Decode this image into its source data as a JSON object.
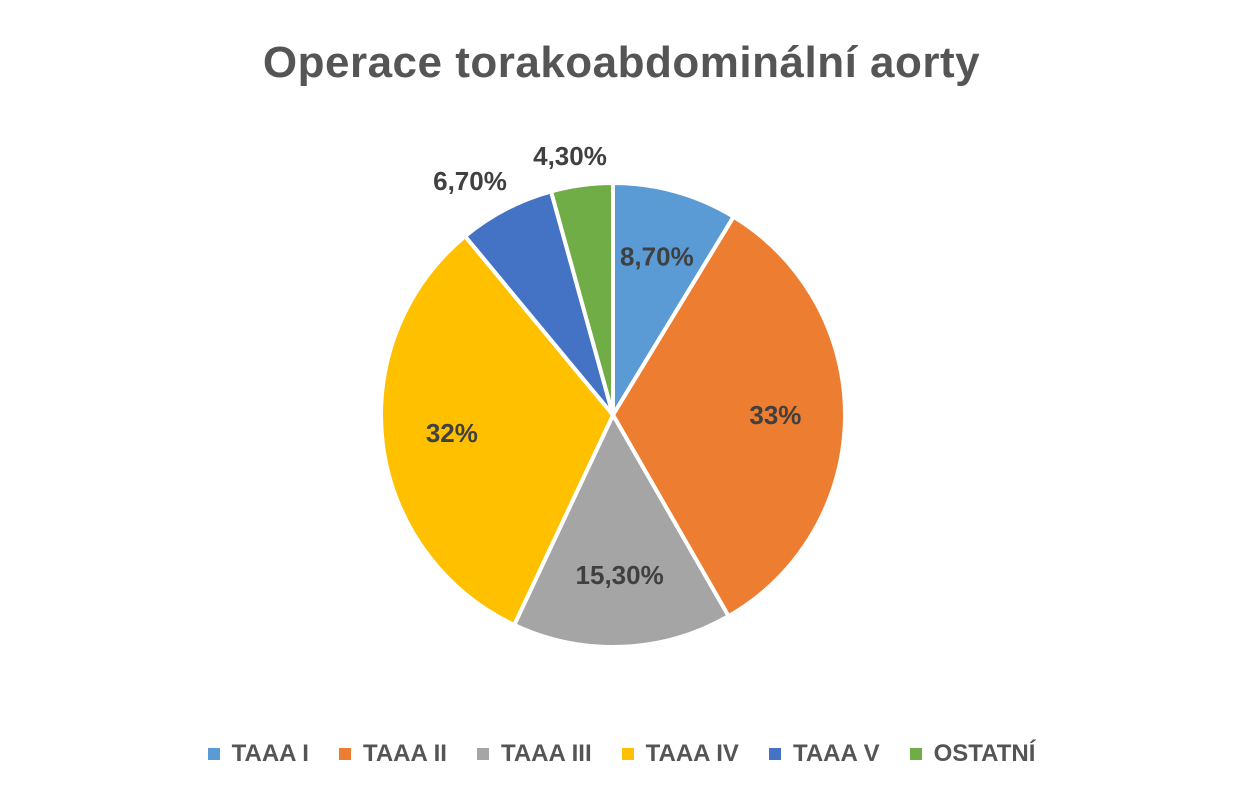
{
  "chart_data": {
    "type": "pie",
    "title": "Operace torakoabdominální aorty",
    "legend_position": "bottom",
    "slices": [
      {
        "name": "TAAA I",
        "value": 8.7,
        "label": "8,70%",
        "color": "#5B9BD5"
      },
      {
        "name": "TAAA II",
        "value": 33.0,
        "label": "33%",
        "color": "#ED7D31"
      },
      {
        "name": "TAAA III",
        "value": 15.3,
        "label": "15,30%",
        "color": "#A5A5A5"
      },
      {
        "name": "TAAA IV",
        "value": 32.0,
        "label": "32%",
        "color": "#FFC000"
      },
      {
        "name": "TAAA V",
        "value": 6.7,
        "label": "6,70%",
        "color": "#4472C4"
      },
      {
        "name": "OSTATNÍ",
        "value": 4.3,
        "label": "4,30%",
        "color": "#70AD47"
      }
    ]
  }
}
